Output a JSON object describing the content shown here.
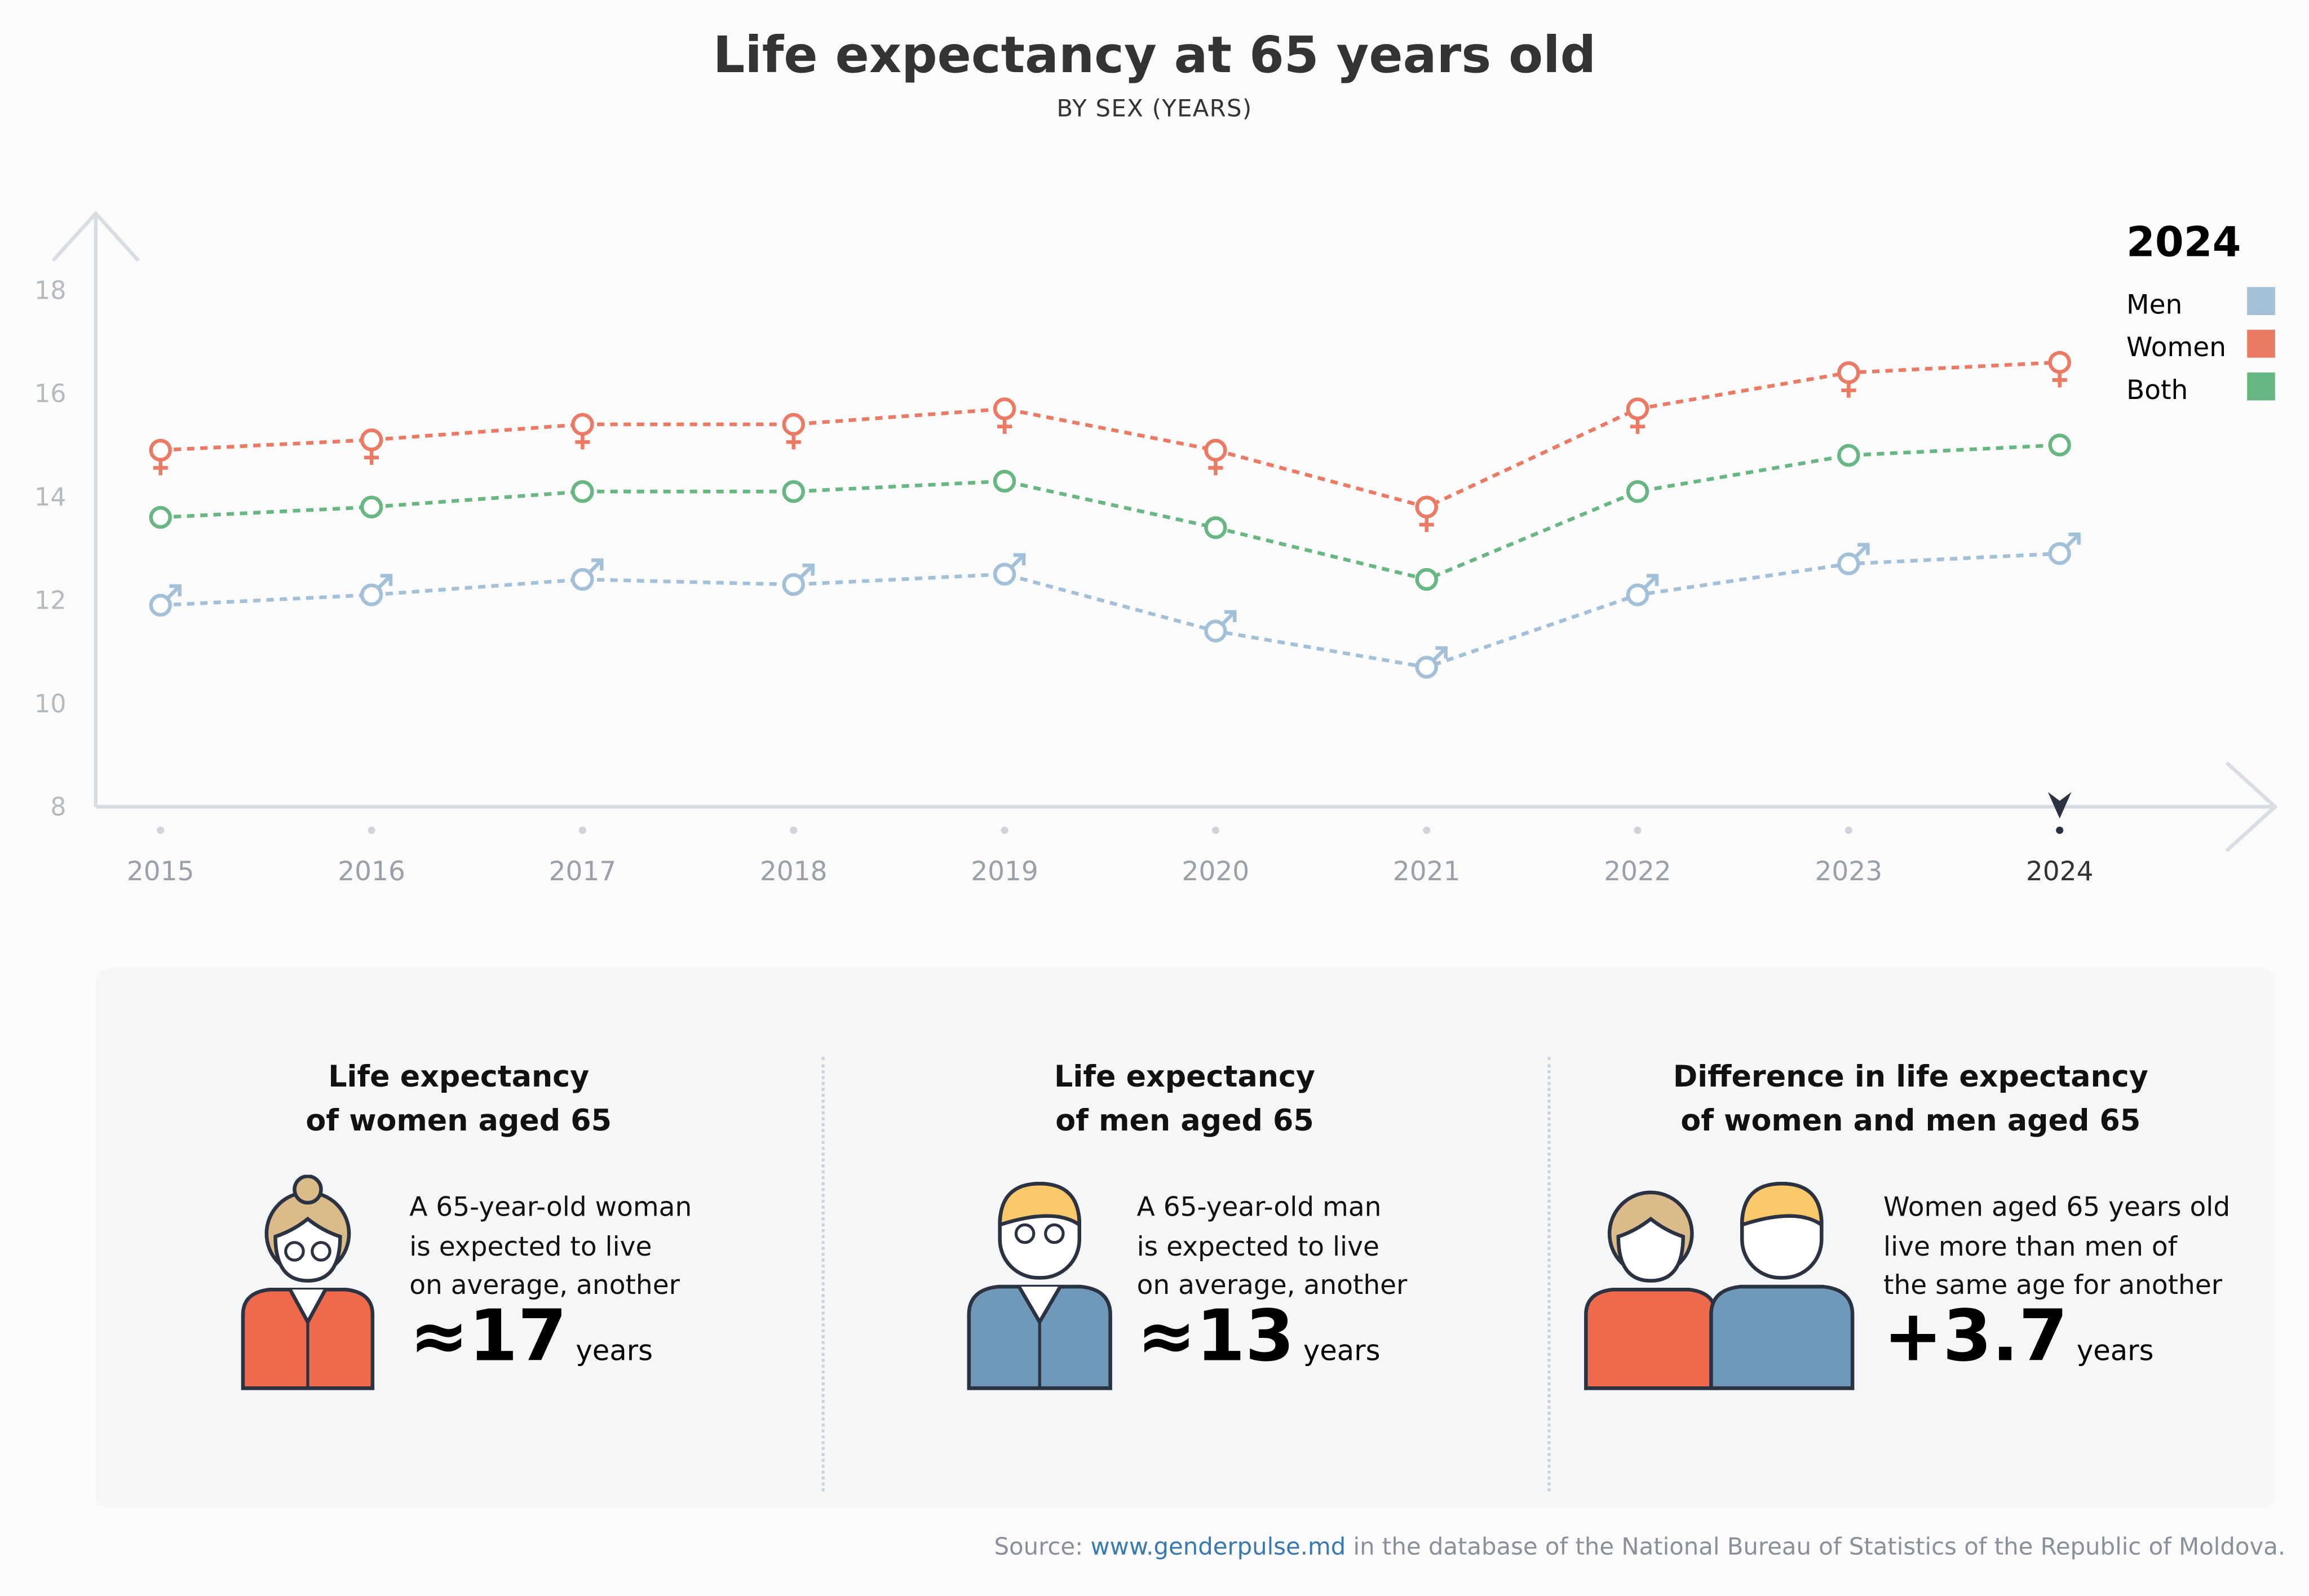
{
  "header": {
    "title": "Life expectancy at 65 years old",
    "subtitle": "BY SEX (YEARS)"
  },
  "chart_data": {
    "type": "line",
    "title": "Life expectancy at 65 years old",
    "subtitle": "BY SEX (YEARS)",
    "x": [
      "2015",
      "2016",
      "2017",
      "2018",
      "2019",
      "2020",
      "2021",
      "2022",
      "2023",
      "2024"
    ],
    "yticks": [
      8,
      10,
      12,
      14,
      16,
      18
    ],
    "ylim": [
      8,
      18
    ],
    "grid": false,
    "legend": {
      "title": "2024",
      "placement": "top-right"
    },
    "highlighted_x": "2024",
    "series": [
      {
        "name": "Men",
        "color": "#a3c0d9",
        "marker": "male-symbol",
        "values": [
          11.9,
          12.1,
          12.4,
          12.3,
          12.5,
          11.4,
          10.7,
          12.1,
          12.7,
          12.9
        ]
      },
      {
        "name": "Women",
        "color": "#eb7a64",
        "marker": "female-symbol",
        "values": [
          14.9,
          15.1,
          15.4,
          15.4,
          15.7,
          14.9,
          13.8,
          15.7,
          16.4,
          16.6
        ]
      },
      {
        "name": "Both",
        "color": "#68b782",
        "marker": "circle",
        "values": [
          13.6,
          13.8,
          14.1,
          14.1,
          14.3,
          13.4,
          12.4,
          14.1,
          14.8,
          15.0
        ]
      }
    ]
  },
  "cards": [
    {
      "title1": "Life expectancy",
      "title2": "of women aged 65",
      "desc": [
        "A 65-year-old woman",
        "is expected to live",
        "on average, another"
      ],
      "value": "≈17",
      "unit": "years",
      "icon": "woman-icon"
    },
    {
      "title1": "Life expectancy",
      "title2": "of men aged 65",
      "desc": [
        "A 65-year-old man",
        "is expected to live",
        "on average, another"
      ],
      "value": "≈13",
      "unit": "years",
      "icon": "man-icon"
    },
    {
      "title1": "Difference in life expectancy",
      "title2": "of women and men aged 65",
      "desc": [
        "Women aged 65 years old",
        "live more than men of",
        "the same age for another"
      ],
      "value": "+3.7",
      "unit": "years",
      "icon": "woman-and-man-icon"
    }
  ],
  "source": {
    "prefix": "Source: ",
    "link": "www.genderpulse.md",
    "suffix": " in the database of the National Bureau of Statistics of the Republic of Moldova."
  }
}
